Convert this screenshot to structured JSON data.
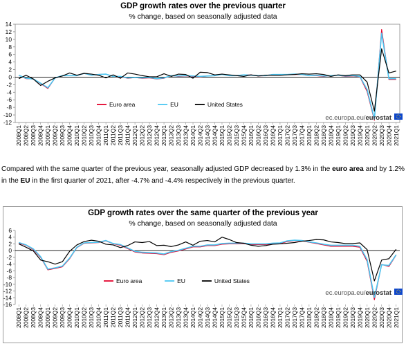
{
  "source": {
    "prefix": "ec.europa.eu/",
    "brand": "eurostat"
  },
  "paragraph": {
    "p1": "Compared with the same quarter of the previous year, seasonally adjusted GDP decreased by 1.3% in the ",
    "b1": "euro area",
    "p2": " and by 1.2% in the ",
    "b2": "EU",
    "p3": " in the first quarter of 2021, after -4.7% and -4.4% respectively in the previous quarter."
  },
  "chart_data": [
    {
      "type": "line",
      "title": "GDP growth rates over the previous quarter",
      "subtitle": "% change, based on seasonally adjusted data",
      "ylim": [
        -12,
        14
      ],
      "yticks": [
        -12,
        -10,
        -8,
        -6,
        -4,
        -2,
        0,
        2,
        4,
        6,
        8,
        10,
        12,
        14
      ],
      "grid": false,
      "legend": "bottom-center",
      "categories": [
        "2008Q1",
        "2008Q2",
        "2008Q3",
        "2008Q4",
        "2009Q1",
        "2009Q2",
        "2009Q3",
        "2009Q4",
        "2010Q1",
        "2010Q2",
        "2010Q3",
        "2010Q4",
        "2011Q1",
        "2011Q2",
        "2011Q3",
        "2011Q4",
        "2012Q1",
        "2012Q2",
        "2012Q3",
        "2012Q4",
        "2013Q1",
        "2013Q2",
        "2013Q3",
        "2013Q4",
        "2014Q1",
        "2014Q2",
        "2014Q3",
        "2014Q4",
        "2015Q1",
        "2015Q2",
        "2015Q3",
        "2015Q4",
        "2016Q1",
        "2016Q2",
        "2016Q3",
        "2016Q4",
        "2017Q1",
        "2017Q2",
        "2017Q3",
        "2017Q4",
        "2018Q1",
        "2018Q2",
        "2018Q3",
        "2018Q4",
        "2019Q1",
        "2019Q2",
        "2019Q3",
        "2019Q4",
        "2020Q1",
        "2020Q2",
        "2020Q3",
        "2020Q4",
        "2021Q1"
      ],
      "series": [
        {
          "name": "Euro area",
          "color": "#e4002b",
          "values": [
            0.5,
            -0.4,
            -0.5,
            -1.7,
            -3.0,
            -0.2,
            0.4,
            0.4,
            0.4,
            1.0,
            0.5,
            0.7,
            0.8,
            0.2,
            0.1,
            -0.3,
            -0.1,
            -0.3,
            -0.2,
            -0.5,
            -0.3,
            0.4,
            0.2,
            0.3,
            0.2,
            0.1,
            0.3,
            0.4,
            0.8,
            0.4,
            0.4,
            0.6,
            0.6,
            0.3,
            0.4,
            0.7,
            0.7,
            0.7,
            0.7,
            0.7,
            0.4,
            0.4,
            0.2,
            0.4,
            0.5,
            0.2,
            0.3,
            0.1,
            -3.8,
            -11.4,
            12.6,
            -0.6,
            -0.6
          ]
        },
        {
          "name": "EU",
          "color": "#4ac6f2",
          "values": [
            0.5,
            -0.3,
            -0.5,
            -1.6,
            -2.8,
            -0.2,
            0.4,
            0.4,
            0.4,
            1.0,
            0.5,
            0.7,
            0.8,
            0.2,
            0.2,
            -0.2,
            -0.1,
            -0.2,
            -0.1,
            -0.4,
            -0.2,
            0.4,
            0.3,
            0.4,
            0.3,
            0.2,
            0.3,
            0.4,
            0.7,
            0.4,
            0.4,
            0.6,
            0.5,
            0.4,
            0.4,
            0.7,
            0.7,
            0.7,
            0.8,
            0.7,
            0.4,
            0.5,
            0.3,
            0.4,
            0.5,
            0.3,
            0.4,
            0.2,
            -3.3,
            -11.1,
            11.6,
            -0.4,
            -0.4
          ]
        },
        {
          "name": "United States",
          "color": "#000000",
          "values": [
            -0.4,
            0.5,
            -0.5,
            -2.2,
            -1.1,
            -0.2,
            0.3,
            1.1,
            0.5,
            1.0,
            0.8,
            0.5,
            -0.2,
            0.6,
            -0.3,
            1.1,
            0.8,
            0.4,
            0.1,
            0.1,
            0.9,
            0.2,
            0.8,
            0.7,
            -0.3,
            1.3,
            1.2,
            0.6,
            0.8,
            0.6,
            0.4,
            0.2,
            0.6,
            0.3,
            0.5,
            0.5,
            0.5,
            0.6,
            0.7,
            0.9,
            0.8,
            0.9,
            0.7,
            0.2,
            0.6,
            0.4,
            0.6,
            0.6,
            -1.3,
            -9.0,
            7.5,
            1.1,
            1.6
          ]
        }
      ]
    },
    {
      "type": "line",
      "title": "GDP growth rates over the same quarter of the previous year",
      "subtitle": "% change, based on seasonally adjusted data",
      "ylim": [
        -16,
        6
      ],
      "yticks": [
        -16,
        -14,
        -12,
        -10,
        -8,
        -6,
        -4,
        -2,
        0,
        2,
        4,
        6
      ],
      "grid": false,
      "legend": "bottom-center",
      "categories": [
        "2008Q1",
        "2008Q2",
        "2008Q3",
        "2008Q4",
        "2009Q1",
        "2009Q2",
        "2009Q3",
        "2009Q4",
        "2010Q1",
        "2010Q2",
        "2010Q3",
        "2010Q4",
        "2011Q1",
        "2011Q2",
        "2011Q3",
        "2011Q4",
        "2012Q1",
        "2012Q2",
        "2012Q3",
        "2012Q4",
        "2013Q1",
        "2013Q2",
        "2013Q3",
        "2013Q4",
        "2014Q1",
        "2014Q2",
        "2014Q3",
        "2014Q4",
        "2015Q1",
        "2015Q2",
        "2015Q3",
        "2015Q4",
        "2016Q1",
        "2016Q2",
        "2016Q3",
        "2016Q4",
        "2017Q1",
        "2017Q2",
        "2017Q3",
        "2017Q4",
        "2018Q1",
        "2018Q2",
        "2018Q3",
        "2018Q4",
        "2019Q1",
        "2019Q2",
        "2019Q3",
        "2019Q4",
        "2020Q1",
        "2020Q2",
        "2020Q3",
        "2020Q4",
        "2021Q1"
      ],
      "series": [
        {
          "name": "Euro area",
          "color": "#e4002b",
          "values": [
            2.2,
            1.6,
            0.3,
            -2.0,
            -5.7,
            -5.3,
            -4.8,
            -2.4,
            0.9,
            2.2,
            2.3,
            2.4,
            2.9,
            2.0,
            1.6,
            0.6,
            -0.4,
            -0.7,
            -0.8,
            -0.9,
            -1.2,
            -0.5,
            -0.1,
            0.5,
            1.1,
            1.1,
            1.5,
            1.5,
            1.9,
            2.0,
            2.0,
            2.1,
            1.8,
            1.8,
            1.8,
            2.0,
            2.1,
            2.7,
            3.0,
            2.9,
            2.5,
            2.1,
            1.7,
            1.3,
            1.3,
            1.3,
            1.3,
            1.0,
            -3.2,
            -14.6,
            -4.1,
            -4.7,
            -1.3
          ]
        },
        {
          "name": "EU",
          "color": "#4ac6f2",
          "values": [
            2.4,
            1.7,
            0.5,
            -1.8,
            -5.5,
            -5.1,
            -4.6,
            -2.2,
            1.0,
            2.3,
            2.4,
            2.5,
            3.0,
            2.1,
            1.8,
            0.8,
            -0.2,
            -0.5,
            -0.6,
            -0.7,
            -1.0,
            -0.3,
            0.1,
            0.7,
            1.3,
            1.3,
            1.7,
            1.7,
            2.1,
            2.2,
            2.2,
            2.2,
            2.0,
            2.0,
            2.0,
            2.2,
            2.3,
            2.9,
            3.1,
            3.0,
            2.6,
            2.3,
            1.9,
            1.6,
            1.6,
            1.6,
            1.6,
            1.3,
            -2.7,
            -13.9,
            -4.2,
            -4.4,
            -1.2
          ]
        },
        {
          "name": "United States",
          "color": "#000000",
          "values": [
            2.0,
            1.0,
            -0.1,
            -2.8,
            -3.3,
            -4.0,
            -3.3,
            -0.2,
            1.7,
            2.7,
            3.1,
            2.8,
            1.9,
            1.7,
            0.9,
            1.5,
            2.6,
            2.4,
            2.7,
            1.5,
            1.6,
            1.2,
            1.7,
            2.6,
            1.6,
            2.8,
            3.0,
            2.6,
            4.0,
            3.3,
            2.4,
            2.2,
            1.6,
            1.3,
            1.5,
            1.9,
            2.0,
            2.2,
            2.4,
            2.8,
            3.0,
            3.3,
            3.2,
            2.6,
            2.4,
            2.1,
            2.1,
            2.3,
            0.3,
            -9.0,
            -2.8,
            -2.4,
            0.4
          ]
        }
      ]
    }
  ]
}
